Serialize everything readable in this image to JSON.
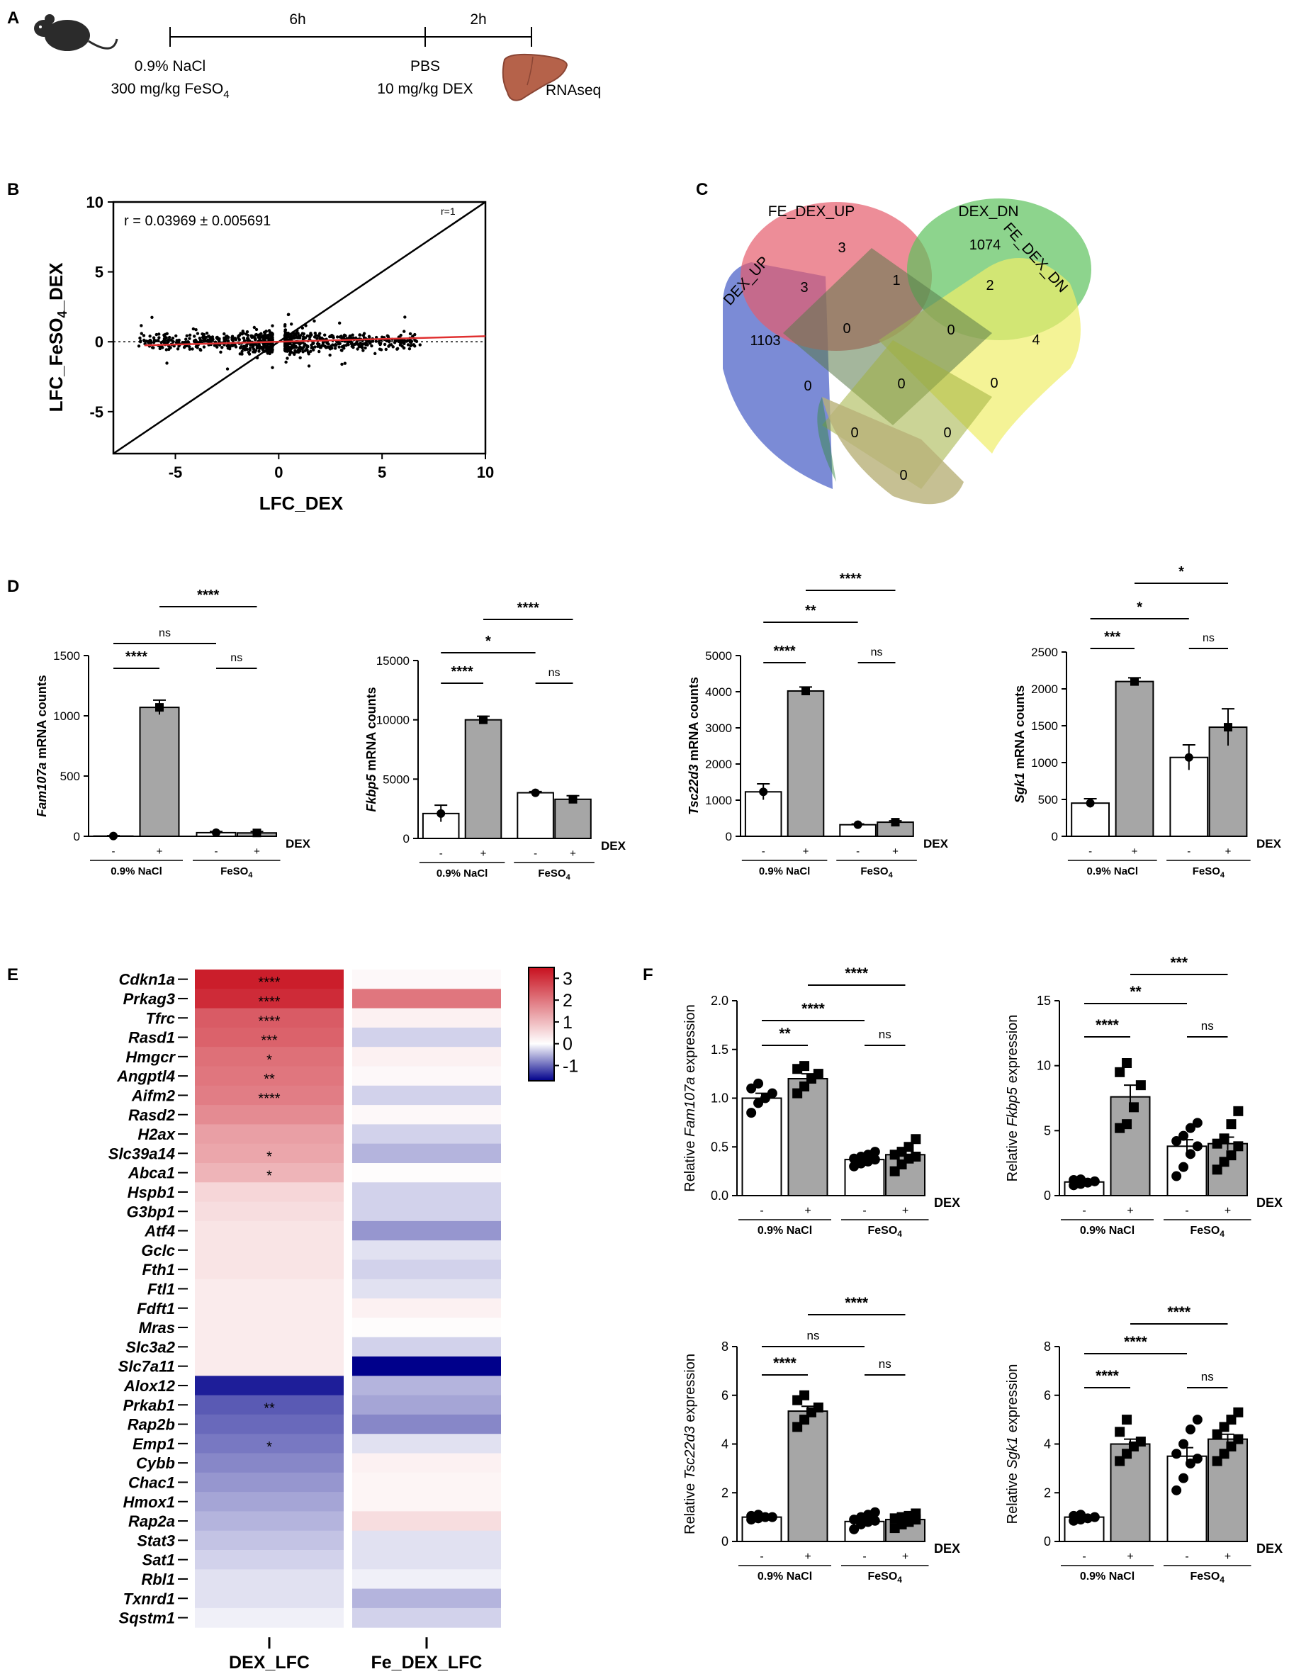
{
  "panel_labels": {
    "A": "A",
    "B": "B",
    "C": "C",
    "D": "D",
    "E": "E",
    "F": "F"
  },
  "timeline": {
    "interval_1": "6h",
    "interval_2": "2h",
    "treatment_1_line1": "0.9% NaCl",
    "treatment_1_line2_prefix": "300 mg/kg FeSO",
    "treatment_1_line2_sub": "4",
    "treatment_2_line1": "PBS",
    "treatment_2_line2": "10 mg/kg DEX",
    "endpoint": "RNAseq",
    "icons": [
      "mouse-icon",
      "liver-icon"
    ]
  },
  "chart_data": [
    {
      "id": "B",
      "type": "scatter",
      "xlabel": "LFC_DEX",
      "ylabel_prefix": "LFC_FeSO",
      "ylabel_sub": "4",
      "ylabel_suffix": "_DEX",
      "xlim": [
        -8,
        10
      ],
      "ylim": [
        -8,
        10
      ],
      "xticks": [
        -5,
        0,
        5,
        10
      ],
      "yticks": [
        -5,
        0,
        5,
        10
      ],
      "annotation": "r = 0.03969 ± 0.005691",
      "identity_label": "r=1",
      "regression_slope": 0.0397,
      "colors": {
        "regression": "#e03030",
        "points": "#000000"
      }
    },
    {
      "id": "C",
      "type": "venn",
      "sets": [
        "DEX_UP",
        "FE_DEX_UP",
        "DEX_DN",
        "FE_DEX_DN"
      ],
      "set_colors": [
        "#4f64c8",
        "#e55c6c",
        "#5cc25c",
        "#f0ee6a"
      ],
      "regions": {
        "DEX_UP": 1103,
        "FE_DEX_UP": 3,
        "DEX_DN": 1074,
        "FE_DEX_DN": 4,
        "DEX_UP&FE_DEX_UP": 3,
        "FE_DEX_UP&DEX_DN": 1,
        "DEX_DN&FE_DEX_DN": 2,
        "DEX_UP&FE_DEX_UP&DEX_DN": 0,
        "FE_DEX_UP&DEX_DN&FE_DEX_DN": 0,
        "DEX_UP&DEX_DN": 0,
        "all_four": 0,
        "FE_DEX_UP&FE_DEX_DN": 0,
        "DEX_UP&DEX_DN&FE_DEX_DN": 0,
        "DEX_UP&FE_DEX_UP&FE_DEX_DN": 0,
        "DEX_UP&FE_DEX_DN": 0
      }
    },
    {
      "id": "D1",
      "type": "bar",
      "ylabel_gene": "Fam107a",
      "ylabel_rest": " mRNA counts",
      "categories": [
        "-",
        "+",
        "-",
        "+"
      ],
      "groups": [
        "0.9% NaCl",
        "FeSO4"
      ],
      "treatment_label": "DEX",
      "values": [
        2,
        1070,
        30,
        28
      ],
      "errors": [
        3,
        60,
        10,
        12
      ],
      "ylim": [
        0,
        1500
      ],
      "yticks": [
        0,
        500,
        1000,
        1500
      ],
      "points": [
        [
          2
        ],
        [
          1070
        ],
        [
          30
        ],
        [
          28
        ]
      ],
      "brackets": [
        {
          "from": 0,
          "to": 1,
          "label": "****",
          "level": 1
        },
        {
          "from": 2,
          "to": 3,
          "label": "ns",
          "level": 1
        },
        {
          "from": 0,
          "to": 2,
          "label": "ns",
          "level": 2
        },
        {
          "from": 1,
          "to": 3,
          "label": "****",
          "level": 3
        }
      ]
    },
    {
      "id": "D2",
      "type": "bar",
      "ylabel_gene": "Fkbp5",
      "ylabel_rest": " mRNA counts",
      "categories": [
        "-",
        "+",
        "-",
        "+"
      ],
      "groups": [
        "0.9% NaCl",
        "FeSO4"
      ],
      "treatment_label": "DEX",
      "values": [
        2100,
        10000,
        3850,
        3300
      ],
      "errors": [
        700,
        300,
        100,
        300
      ],
      "ylim": [
        0,
        15000
      ],
      "yticks": [
        0,
        5000,
        10000,
        15000
      ],
      "points": [
        [
          2100
        ],
        [
          10000
        ],
        [
          3850
        ],
        [
          3300
        ]
      ],
      "brackets": [
        {
          "from": 0,
          "to": 1,
          "label": "****",
          "level": 1
        },
        {
          "from": 2,
          "to": 3,
          "label": "ns",
          "level": 1
        },
        {
          "from": 0,
          "to": 2,
          "label": "*",
          "level": 2
        },
        {
          "from": 1,
          "to": 3,
          "label": "****",
          "level": 3
        }
      ]
    },
    {
      "id": "D3",
      "type": "bar",
      "ylabel_gene": "Tsc22d3",
      "ylabel_rest": " mRNA counts",
      "categories": [
        "-",
        "+",
        "-",
        "+"
      ],
      "groups": [
        "0.9% NaCl",
        "FeSO4"
      ],
      "treatment_label": "DEX",
      "values": [
        1230,
        4020,
        320,
        390
      ],
      "errors": [
        220,
        110,
        20,
        40
      ],
      "ylim": [
        0,
        5000
      ],
      "yticks": [
        0,
        1000,
        2000,
        3000,
        4000,
        5000
      ],
      "points": [
        [
          1230
        ],
        [
          4020
        ],
        [
          320
        ],
        [
          390
        ]
      ],
      "brackets": [
        {
          "from": 0,
          "to": 1,
          "label": "****",
          "level": 1
        },
        {
          "from": 2,
          "to": 3,
          "label": "ns",
          "level": 1
        },
        {
          "from": 0,
          "to": 2,
          "label": "**",
          "level": 2
        },
        {
          "from": 1,
          "to": 3,
          "label": "****",
          "level": 3
        }
      ]
    },
    {
      "id": "D4",
      "type": "bar",
      "ylabel_gene": "Sgk1",
      "ylabel_rest": " mRNA counts",
      "categories": [
        "-",
        "+",
        "-",
        "+"
      ],
      "groups": [
        "0.9% NaCl",
        "FeSO4"
      ],
      "treatment_label": "DEX",
      "values": [
        450,
        2100,
        1070,
        1480
      ],
      "errors": [
        60,
        50,
        170,
        250
      ],
      "ylim": [
        0,
        2500
      ],
      "yticks": [
        0,
        500,
        1000,
        1500,
        2000,
        2500
      ],
      "points": [
        [
          450
        ],
        [
          2100
        ],
        [
          1070
        ],
        [
          1480
        ]
      ],
      "brackets": [
        {
          "from": 0,
          "to": 1,
          "label": "***",
          "level": 1
        },
        {
          "from": 2,
          "to": 3,
          "label": "ns",
          "level": 1
        },
        {
          "from": 0,
          "to": 2,
          "label": "*",
          "level": 2
        },
        {
          "from": 1,
          "to": 3,
          "label": "*",
          "level": 3
        }
      ]
    },
    {
      "id": "E",
      "type": "heatmap",
      "columns": [
        "DEX_LFC",
        "Fe_DEX_LFC"
      ],
      "rows": [
        "Cdkn1a",
        "Prkag3",
        "Tfrc",
        "Rasd1",
        "Hmgcr",
        "Angptl4",
        "Aifm2",
        "Rasd2",
        "H2ax",
        "Slc39a14",
        "Abca1",
        "Hspb1",
        "G3bp1",
        "Atf4",
        "Gclc",
        "Fth1",
        "Ftl1",
        "Fdft1",
        "Mras",
        "Slc3a2",
        "Slc7a11",
        "Alox12",
        "Prkab1",
        "Rap2b",
        "Emp1",
        "Cybb",
        "Chac1",
        "Hmox1",
        "Rap2a",
        "Stat3",
        "Sat1",
        "Rbl1",
        "Txnrd1",
        "Sqstm1"
      ],
      "values": [
        [
          3.3,
          0.1
        ],
        [
          3.1,
          2.0
        ],
        [
          2.4,
          0.2
        ],
        [
          2.3,
          -0.3
        ],
        [
          2.1,
          0.2
        ],
        [
          2.0,
          0.1
        ],
        [
          1.9,
          -0.3
        ],
        [
          1.7,
          0.1
        ],
        [
          1.4,
          -0.3
        ],
        [
          1.3,
          -0.5
        ],
        [
          1.1,
          0.05
        ],
        [
          0.6,
          -0.3
        ],
        [
          0.5,
          -0.3
        ],
        [
          0.4,
          -0.7
        ],
        [
          0.4,
          -0.2
        ],
        [
          0.4,
          -0.3
        ],
        [
          0.3,
          -0.2
        ],
        [
          0.3,
          0.2
        ],
        [
          0.3,
          0.05
        ],
        [
          0.3,
          -0.3
        ],
        [
          0.3,
          -1.7
        ],
        [
          -1.5,
          -0.5
        ],
        [
          -1.1,
          -0.6
        ],
        [
          -1.0,
          -0.8
        ],
        [
          -0.9,
          -0.2
        ],
        [
          -0.8,
          0.2
        ],
        [
          -0.7,
          0.15
        ],
        [
          -0.6,
          0.15
        ],
        [
          -0.5,
          0.5
        ],
        [
          -0.4,
          -0.2
        ],
        [
          -0.3,
          -0.2
        ],
        [
          -0.2,
          -0.1
        ],
        [
          -0.2,
          -0.5
        ],
        [
          -0.1,
          -0.3
        ]
      ],
      "significance": [
        "****",
        "****",
        "****",
        "***",
        "*",
        "**",
        "****",
        "",
        "",
        "*",
        "*",
        "",
        "",
        "",
        "",
        "",
        "",
        "",
        "",
        "",
        "",
        "",
        "**",
        "",
        "*",
        "",
        "",
        "",
        "",
        "",
        "",
        "",
        "",
        ""
      ],
      "colorbar": {
        "ticks": [
          3,
          2,
          1,
          0,
          -1
        ],
        "range": [
          -1.7,
          3.5
        ],
        "low": "#00008b",
        "mid": "#ffffff",
        "high": "#c8101e"
      }
    },
    {
      "id": "F1",
      "type": "bar",
      "ylabel_prefix": "Relative ",
      "ylabel_gene": "Fam107a",
      "ylabel_rest": " expression",
      "categories": [
        "-",
        "+",
        "-",
        "+"
      ],
      "groups": [
        "0.9% NaCl",
        "FeSO4"
      ],
      "treatment_label": "DEX",
      "values": [
        1.0,
        1.2,
        0.37,
        0.42
      ],
      "errors": [
        0.05,
        0.05,
        0.02,
        0.05
      ],
      "ylim": [
        0,
        2.0
      ],
      "yticks": [
        0.0,
        0.5,
        1.0,
        1.5,
        2.0
      ],
      "points": [
        [
          0.85,
          0.95,
          1.0,
          1.05,
          1.1,
          1.15
        ],
        [
          1.05,
          1.12,
          1.2,
          1.25,
          1.3,
          1.33
        ],
        [
          0.3,
          0.33,
          0.35,
          0.37,
          0.38,
          0.4,
          0.42,
          0.45
        ],
        [
          0.25,
          0.32,
          0.38,
          0.4,
          0.42,
          0.45,
          0.5,
          0.58
        ]
      ],
      "brackets": [
        {
          "from": 0,
          "to": 1,
          "label": "**",
          "level": 1
        },
        {
          "from": 2,
          "to": 3,
          "label": "ns",
          "level": 1
        },
        {
          "from": 0,
          "to": 2,
          "label": "****",
          "level": 2
        },
        {
          "from": 1,
          "to": 3,
          "label": "****",
          "level": 3
        }
      ]
    },
    {
      "id": "F2",
      "type": "bar",
      "ylabel_prefix": "Relative ",
      "ylabel_gene": "Fkbp5",
      "ylabel_rest": " expression",
      "categories": [
        "-",
        "+",
        "-",
        "+"
      ],
      "groups": [
        "0.9% NaCl",
        "FeSO4"
      ],
      "treatment_label": "DEX",
      "values": [
        1.05,
        7.6,
        3.8,
        4.0
      ],
      "errors": [
        0.1,
        0.9,
        0.5,
        0.5
      ],
      "ylim": [
        0,
        15
      ],
      "yticks": [
        0,
        5,
        10,
        15
      ],
      "points": [
        [
          0.8,
          0.9,
          1.0,
          1.1,
          1.2,
          1.25
        ],
        [
          5.2,
          5.5,
          6.8,
          8.5,
          9.5,
          10.2
        ],
        [
          1.5,
          2.2,
          3.2,
          3.8,
          4.2,
          4.6,
          5.2,
          5.6
        ],
        [
          2.0,
          2.6,
          3.1,
          3.8,
          4.0,
          4.4,
          5.5,
          6.5
        ]
      ],
      "brackets": [
        {
          "from": 0,
          "to": 1,
          "label": "****",
          "level": 1
        },
        {
          "from": 2,
          "to": 3,
          "label": "ns",
          "level": 1
        },
        {
          "from": 0,
          "to": 2,
          "label": "**",
          "level": 2
        },
        {
          "from": 1,
          "to": 3,
          "label": "***",
          "level": 3
        }
      ]
    },
    {
      "id": "F3",
      "type": "bar",
      "ylabel_prefix": "Relative ",
      "ylabel_gene": "Tsc22d3",
      "ylabel_rest": " expression",
      "categories": [
        "-",
        "+",
        "-",
        "+"
      ],
      "groups": [
        "0.9% NaCl",
        "FeSO4"
      ],
      "treatment_label": "DEX",
      "values": [
        1.0,
        5.35,
        0.82,
        0.9
      ],
      "errors": [
        0.03,
        0.2,
        0.07,
        0.08
      ],
      "ylim": [
        0,
        8
      ],
      "yticks": [
        0,
        2,
        4,
        6,
        8
      ],
      "points": [
        [
          0.9,
          0.95,
          1.0,
          1.0,
          1.05,
          1.1
        ],
        [
          4.7,
          5.0,
          5.3,
          5.5,
          5.8,
          6.0
        ],
        [
          0.5,
          0.7,
          0.8,
          0.85,
          0.9,
          1.0,
          1.1,
          1.2
        ],
        [
          0.55,
          0.7,
          0.8,
          0.9,
          0.95,
          1.0,
          1.05,
          1.15
        ]
      ],
      "brackets": [
        {
          "from": 0,
          "to": 1,
          "label": "****",
          "level": 1
        },
        {
          "from": 2,
          "to": 3,
          "label": "ns",
          "level": 1
        },
        {
          "from": 0,
          "to": 2,
          "label": "ns",
          "level": 2
        },
        {
          "from": 1,
          "to": 3,
          "label": "****",
          "level": 3
        }
      ]
    },
    {
      "id": "F4",
      "type": "bar",
      "ylabel_prefix": "Relative ",
      "ylabel_gene": "Sgk1",
      "ylabel_rest": " expression",
      "categories": [
        "-",
        "+",
        "-",
        "+"
      ],
      "groups": [
        "0.9% NaCl",
        "FeSO4"
      ],
      "treatment_label": "DEX",
      "values": [
        1.0,
        4.0,
        3.5,
        4.2
      ],
      "errors": [
        0.04,
        0.2,
        0.35,
        0.2
      ],
      "ylim": [
        0,
        8
      ],
      "yticks": [
        0,
        2,
        4,
        6,
        8
      ],
      "points": [
        [
          0.85,
          0.9,
          0.95,
          1.0,
          1.05,
          1.1
        ],
        [
          3.3,
          3.6,
          3.9,
          4.1,
          4.5,
          5.0
        ],
        [
          2.1,
          2.6,
          3.2,
          3.4,
          3.6,
          4.0,
          4.6,
          5.0
        ],
        [
          3.3,
          3.6,
          3.9,
          4.2,
          4.4,
          4.7,
          5.0,
          5.3
        ]
      ],
      "brackets": [
        {
          "from": 0,
          "to": 1,
          "label": "****",
          "level": 1
        },
        {
          "from": 2,
          "to": 3,
          "label": "ns",
          "level": 1
        },
        {
          "from": 0,
          "to": 2,
          "label": "****",
          "level": 2
        },
        {
          "from": 1,
          "to": 3,
          "label": "****",
          "level": 3
        }
      ]
    }
  ]
}
